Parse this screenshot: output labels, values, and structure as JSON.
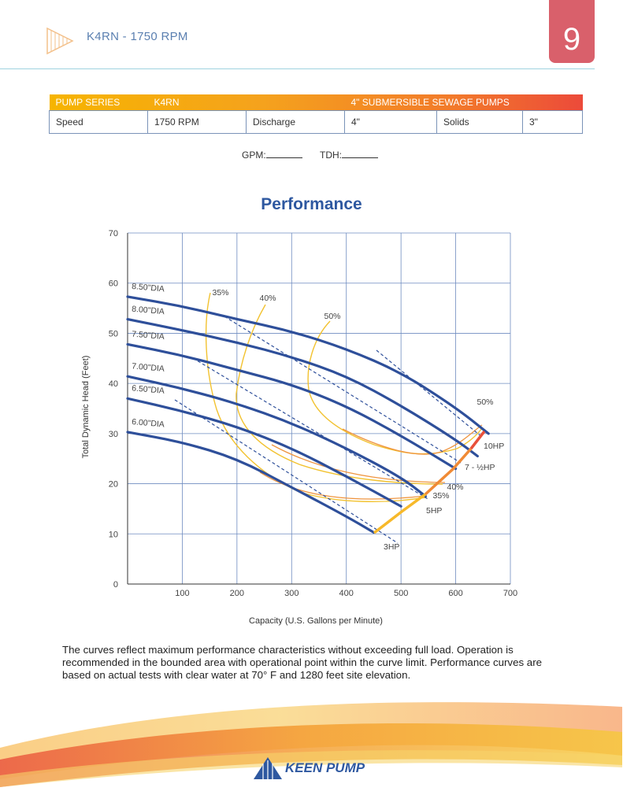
{
  "header": {
    "title": "K4RN - 1750 RPM",
    "page_number": "9"
  },
  "spec_table": {
    "header_row": [
      "PUMP SERIES",
      "K4RN",
      "4\" SUBMERSIBLE SEWAGE PUMPS"
    ],
    "data_row": [
      "Speed",
      "1750 RPM",
      "Discharge",
      "4\"",
      "Solids",
      "3\""
    ]
  },
  "fill_in": {
    "gpm_label": "GPM:",
    "tdh_label": "TDH:"
  },
  "performance_title": "Performance",
  "chart_data": {
    "type": "line",
    "xlabel": "Capacity (U.S. Gallons per Minute)",
    "ylabel": "Total Dynamic Head (Feet)",
    "xlim": [
      0,
      700
    ],
    "ylim": [
      0,
      70
    ],
    "x_ticks": [
      100,
      200,
      300,
      400,
      500,
      600,
      700
    ],
    "y_ticks": [
      0,
      10,
      20,
      30,
      40,
      50,
      60,
      70
    ],
    "grid": true,
    "series": [
      {
        "name": "8.50\"DIA",
        "points": [
          [
            0,
            57.3
          ],
          [
            100,
            55.4
          ],
          [
            200,
            52.8
          ],
          [
            300,
            50.4
          ],
          [
            400,
            46.9
          ],
          [
            500,
            42.2
          ],
          [
            600,
            35.2
          ],
          [
            660,
            30
          ]
        ]
      },
      {
        "name": "8.00\"DIA",
        "points": [
          [
            0,
            52.8
          ],
          [
            100,
            50.6
          ],
          [
            200,
            48.2
          ],
          [
            300,
            45.3
          ],
          [
            400,
            41.5
          ],
          [
            500,
            35.6
          ],
          [
            600,
            28.8
          ],
          [
            640,
            25.5
          ]
        ]
      },
      {
        "name": "7.50\"DIA",
        "points": [
          [
            0,
            47.8
          ],
          [
            100,
            45.6
          ],
          [
            200,
            42.7
          ],
          [
            300,
            39.8
          ],
          [
            400,
            35.5
          ],
          [
            500,
            29.6
          ],
          [
            600,
            23
          ]
        ]
      },
      {
        "name": "7.00\"DIA",
        "points": [
          [
            0,
            41.4
          ],
          [
            100,
            39
          ],
          [
            200,
            36
          ],
          [
            300,
            32.1
          ],
          [
            400,
            27.1
          ],
          [
            500,
            21.3
          ],
          [
            545,
            17.5
          ]
        ]
      },
      {
        "name": "6.50\"DIA",
        "points": [
          [
            0,
            37
          ],
          [
            100,
            34.5
          ],
          [
            200,
            31.4
          ],
          [
            300,
            27.1
          ],
          [
            400,
            21.5
          ],
          [
            500,
            15.5
          ]
        ]
      },
      {
        "name": "6.00\"DIA",
        "points": [
          [
            0,
            30.3
          ],
          [
            100,
            28.3
          ],
          [
            200,
            25
          ],
          [
            300,
            19.3
          ],
          [
            400,
            13.5
          ],
          [
            450,
            10.3
          ]
        ]
      }
    ],
    "efficiency_labels": [
      "35%",
      "40%",
      "50%"
    ],
    "limit_labels": [
      "50%",
      "40%",
      "35%"
    ],
    "hp_labels": [
      "10HP",
      "7 - ½HP",
      "5HP",
      "3HP"
    ]
  },
  "note": "The curves reflect maximum performance characteristics without exceeding full load. Operation is recommended in the bounded area with operational point within the curve limit. Performance curves are based on actual tests with clear water at 70° F and 1280 feet site elevation.",
  "brand": "KEEN PUMP",
  "colors": {
    "curve_blue": "#2e4f9a",
    "efficiency_yellow": "#f2c230",
    "efficiency_orange": "#ef9540",
    "limit_red": "#e85a3a",
    "accent_pink": "#d9606b",
    "title_blue": "#2e58a0"
  }
}
